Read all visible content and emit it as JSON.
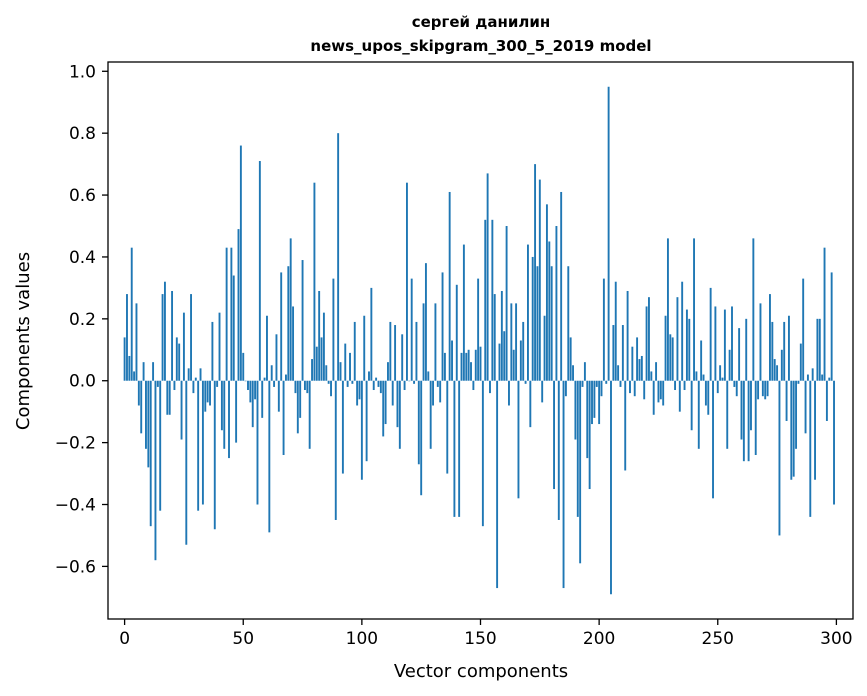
{
  "chart_data": {
    "type": "bar",
    "title": "сергей данилин",
    "subtitle": "news_upos_skipgram_300_5_2019 model",
    "xlabel": "Vector components",
    "ylabel": "Components values",
    "xlim": [
      -7,
      307
    ],
    "ylim": [
      -0.77,
      1.03
    ],
    "xticks": [
      0,
      50,
      100,
      150,
      200,
      250,
      300
    ],
    "xtick_labels": [
      "0",
      "50",
      "100",
      "150",
      "200",
      "250",
      "300"
    ],
    "yticks": [
      1.0,
      0.8,
      0.6,
      0.4,
      0.2,
      0.0,
      -0.2,
      -0.4,
      -0.6
    ],
    "ytick_labels": [
      "1.0",
      "0.8",
      "0.6",
      "0.4",
      "0.2",
      "0.0",
      "−0.2",
      "−0.4",
      "−0.6"
    ],
    "grid": false,
    "bar_color": "#1f77b4",
    "values": [
      0.14,
      0.28,
      0.08,
      0.43,
      0.03,
      0.25,
      -0.08,
      -0.17,
      0.06,
      -0.22,
      -0.28,
      -0.47,
      0.06,
      -0.58,
      -0.02,
      -0.42,
      0.28,
      0.32,
      -0.11,
      -0.11,
      0.29,
      -0.03,
      0.14,
      0.12,
      -0.19,
      0.22,
      -0.53,
      0.04,
      0.28,
      -0.04,
      0.01,
      -0.42,
      0.04,
      -0.4,
      -0.1,
      -0.07,
      -0.08,
      0.19,
      -0.48,
      -0.02,
      0.22,
      -0.16,
      -0.22,
      0.43,
      -0.25,
      0.43,
      0.34,
      -0.2,
      0.49,
      0.76,
      0.09,
      0.0,
      -0.03,
      -0.07,
      -0.15,
      -0.06,
      -0.4,
      0.71,
      -0.12,
      0.01,
      0.21,
      -0.49,
      0.05,
      -0.02,
      0.15,
      -0.1,
      0.35,
      -0.24,
      0.02,
      0.37,
      0.46,
      0.24,
      -0.04,
      -0.17,
      -0.12,
      0.39,
      -0.03,
      -0.04,
      -0.22,
      0.07,
      0.64,
      0.11,
      0.29,
      0.14,
      0.22,
      0.05,
      -0.01,
      -0.05,
      0.33,
      -0.45,
      0.8,
      0.06,
      -0.3,
      0.12,
      -0.02,
      0.09,
      -0.01,
      0.19,
      -0.08,
      -0.06,
      -0.32,
      0.21,
      -0.26,
      0.03,
      0.3,
      -0.03,
      0.01,
      -0.02,
      -0.04,
      -0.18,
      -0.14,
      0.06,
      0.19,
      -0.08,
      0.18,
      -0.15,
      -0.22,
      0.15,
      -0.03,
      0.64,
      0.0,
      0.33,
      -0.01,
      0.19,
      -0.27,
      -0.37,
      0.25,
      0.38,
      0.03,
      -0.22,
      -0.08,
      0.25,
      -0.02,
      -0.07,
      0.35,
      0.09,
      -0.3,
      0.61,
      0.13,
      -0.44,
      0.31,
      -0.44,
      0.09,
      0.44,
      0.09,
      0.1,
      0.06,
      -0.03,
      0.1,
      0.33,
      0.11,
      -0.47,
      0.52,
      0.67,
      -0.04,
      0.52,
      0.28,
      -0.67,
      0.12,
      0.29,
      0.16,
      0.5,
      -0.08,
      0.25,
      0.1,
      0.25,
      -0.38,
      0.13,
      0.19,
      -0.01,
      0.44,
      -0.15,
      0.4,
      0.7,
      0.37,
      0.65,
      -0.07,
      0.21,
      0.57,
      0.45,
      0.37,
      -0.35,
      0.5,
      -0.45,
      0.61,
      -0.67,
      -0.05,
      0.37,
      0.14,
      0.05,
      -0.19,
      -0.44,
      -0.59,
      -0.02,
      0.06,
      -0.25,
      -0.35,
      -0.14,
      -0.12,
      -0.02,
      -0.14,
      -0.05,
      0.33,
      -0.01,
      0.95,
      -0.69,
      0.18,
      0.32,
      0.05,
      -0.02,
      0.18,
      -0.29,
      0.29,
      -0.04,
      0.11,
      -0.05,
      0.14,
      0.07,
      0.08,
      -0.06,
      0.24,
      0.27,
      0.03,
      -0.11,
      0.06,
      -0.07,
      -0.06,
      -0.08,
      0.21,
      0.46,
      0.15,
      0.14,
      -0.03,
      0.27,
      -0.1,
      0.32,
      -0.03,
      0.23,
      0.2,
      -0.16,
      0.46,
      0.03,
      -0.22,
      0.13,
      0.02,
      -0.08,
      -0.11,
      0.3,
      -0.38,
      0.24,
      -0.04,
      0.05,
      0.01,
      0.23,
      -0.22,
      0.1,
      0.24,
      -0.02,
      -0.05,
      0.17,
      -0.19,
      -0.26,
      0.2,
      -0.26,
      -0.16,
      0.46,
      -0.24,
      -0.06,
      0.25,
      -0.05,
      -0.06,
      -0.05,
      0.28,
      0.19,
      0.07,
      0.05,
      -0.5,
      0.1,
      0.19,
      -0.13,
      0.21,
      -0.32,
      -0.31,
      -0.22,
      -0.01,
      0.12,
      0.33,
      -0.17,
      0.02,
      -0.44,
      0.04,
      -0.32,
      0.2,
      0.2,
      0.02,
      0.43,
      -0.13,
      0.01,
      0.35,
      -0.4
    ]
  }
}
